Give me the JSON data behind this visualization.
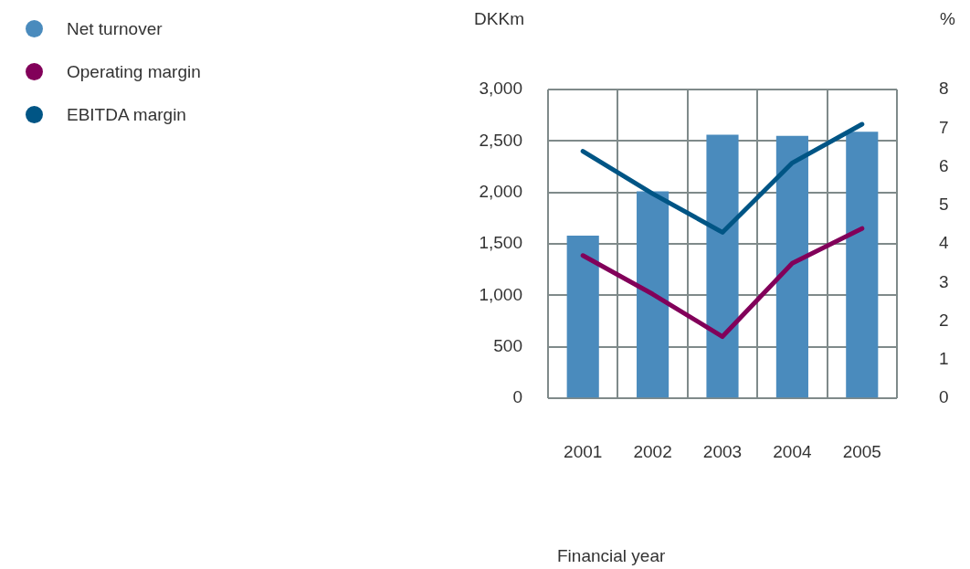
{
  "chart_data": {
    "type": "bar",
    "xlabel": "Financial year",
    "ylabel": "DKKm",
    "y2label": "%",
    "categories": [
      "2001",
      "2002",
      "2003",
      "2004",
      "2005"
    ],
    "series": [
      {
        "name": "Net turnover",
        "color": "#4a8bbd",
        "values": [
          1580,
          2010,
          2560,
          2550,
          2590
        ]
      },
      {
        "name": "Operating margin",
        "type": "line",
        "axis": "y2",
        "color": "#82005a",
        "values": [
          3.7,
          2.7,
          1.6,
          3.5,
          4.4
        ]
      },
      {
        "name": "EBITDA margin",
        "type": "line",
        "axis": "y2",
        "color": "#005585",
        "values": [
          6.4,
          5.3,
          4.3,
          6.1,
          7.1
        ]
      }
    ],
    "ylim": [
      0,
      3000
    ],
    "yticks": [
      {
        "value": 0,
        "label": "0"
      },
      {
        "value": 500,
        "label": "500"
      },
      {
        "value": 1000,
        "label": "1,000"
      },
      {
        "value": 1500,
        "label": "1,500"
      },
      {
        "value": 2000,
        "label": "2,000"
      },
      {
        "value": 2500,
        "label": "2,500"
      },
      {
        "value": 3000,
        "label": "3,000"
      }
    ],
    "y2lim": [
      0,
      8
    ],
    "y2ticks": [
      0,
      1,
      2,
      3,
      4,
      5,
      6,
      7,
      8
    ],
    "grid": true,
    "legend": "top left",
    "marker": "none"
  }
}
